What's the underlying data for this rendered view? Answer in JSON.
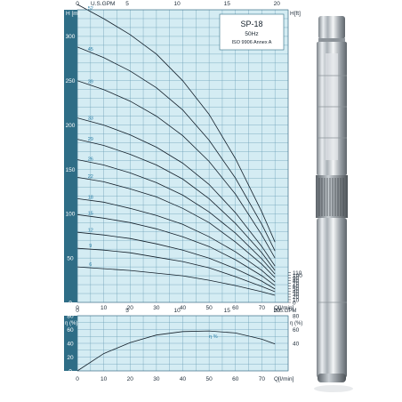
{
  "chart_data": [
    {
      "type": "line",
      "title": "SP-18",
      "subtitle_lines": [
        "50Hz",
        "ISO 9906 Annex A"
      ],
      "xlabel_bottom": "Q[l/min]",
      "xlabel_top": "U.S.GPM",
      "ylabel_left": "H [m]",
      "ylabel_right": "H[ft]",
      "xlim": [
        0,
        80
      ],
      "ylim": [
        0,
        330
      ],
      "x_ticks_bottom": [
        0,
        10,
        20,
        30,
        40,
        50,
        60,
        70
      ],
      "x_ticks_top": [
        0,
        5,
        10,
        15,
        20
      ],
      "y_ticks_left": [
        0,
        50,
        100,
        150,
        200,
        250,
        300
      ],
      "y_ticks_right": [
        0,
        10,
        20,
        30,
        40,
        50,
        60,
        70,
        80,
        90,
        100,
        110
      ],
      "grid": true,
      "x": [
        0,
        10,
        20,
        30,
        40,
        50,
        60,
        70,
        75
      ],
      "series": [
        {
          "name": "52",
          "values": [
            336,
            320,
            302,
            280,
            250,
            212,
            162,
            102,
            68
          ]
        },
        {
          "name": "45",
          "values": [
            288,
            276,
            261,
            242,
            217,
            183,
            140,
            88,
            58
          ]
        },
        {
          "name": "39",
          "values": [
            250,
            240,
            227,
            210,
            188,
            159,
            122,
            76,
            50
          ]
        },
        {
          "name": "33",
          "values": [
            208,
            200,
            189,
            175,
            157,
            133,
            101,
            63,
            41
          ]
        },
        {
          "name": "29",
          "values": [
            184,
            177,
            167,
            155,
            139,
            117,
            89,
            56,
            36
          ]
        },
        {
          "name": "26",
          "values": [
            161,
            155,
            146,
            135,
            121,
            102,
            78,
            49,
            32
          ]
        },
        {
          "name": "22",
          "values": [
            141,
            136,
            128,
            119,
            106,
            90,
            68,
            43,
            28
          ]
        },
        {
          "name": "18",
          "values": [
            117,
            113,
            106,
            98,
            88,
            74,
            57,
            36,
            23
          ]
        },
        {
          "name": "15",
          "values": [
            99,
            95,
            90,
            83,
            74,
            63,
            48,
            30,
            19
          ]
        },
        {
          "name": "12",
          "values": [
            79,
            76,
            72,
            66,
            59,
            50,
            38,
            24,
            15
          ]
        },
        {
          "name": "9",
          "values": [
            61,
            59,
            56,
            51,
            46,
            39,
            29,
            18,
            12
          ]
        },
        {
          "name": "6",
          "values": [
            40,
            38,
            36,
            33,
            30,
            25,
            19,
            12,
            8
          ]
        }
      ]
    },
    {
      "type": "line",
      "xlabel_bottom": "Q[l/min]",
      "xlabel_top": "U.S.GPM",
      "ylabel_left": "η (%)",
      "ylabel_right": "η (%)",
      "xlim": [
        0,
        80
      ],
      "ylim": [
        0,
        80
      ],
      "x_ticks_bottom": [
        0,
        10,
        20,
        30,
        40,
        50,
        60,
        70
      ],
      "x_ticks_top": [
        0,
        5,
        10,
        15,
        20
      ],
      "y_ticks_left": [
        0,
        20,
        40,
        60,
        80
      ],
      "y_ticks_right": [
        40,
        60,
        80
      ],
      "grid": true,
      "x": [
        0,
        10,
        20,
        30,
        40,
        50,
        60,
        70,
        75
      ],
      "series": [
        {
          "name": "η %",
          "values": [
            0,
            25,
            41,
            52,
            57,
            58,
            55,
            46,
            39
          ]
        }
      ]
    }
  ],
  "colors": {
    "plot_bg": "#d4ecf3",
    "band": "#2e6d86",
    "grid": "#6b9fb6",
    "curve": "#14202b",
    "stage_label": "#2a7fa8",
    "legend_bg": "#ffffff"
  },
  "product_image": "stainless-steel-submersible-pump"
}
